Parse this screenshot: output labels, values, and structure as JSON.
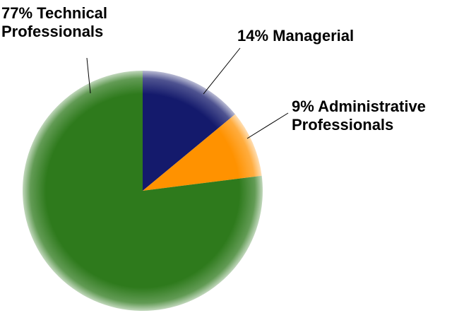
{
  "chart_data": {
    "type": "pie",
    "categories": [
      "Managerial",
      "Administrative Professionals",
      "Technical Professionals"
    ],
    "values": [
      14,
      9,
      77
    ],
    "value_labels": [
      "14%",
      "9%",
      "77%"
    ],
    "colors": [
      "#141a6c",
      "#ff9200",
      "#2e7a1c"
    ]
  }
}
